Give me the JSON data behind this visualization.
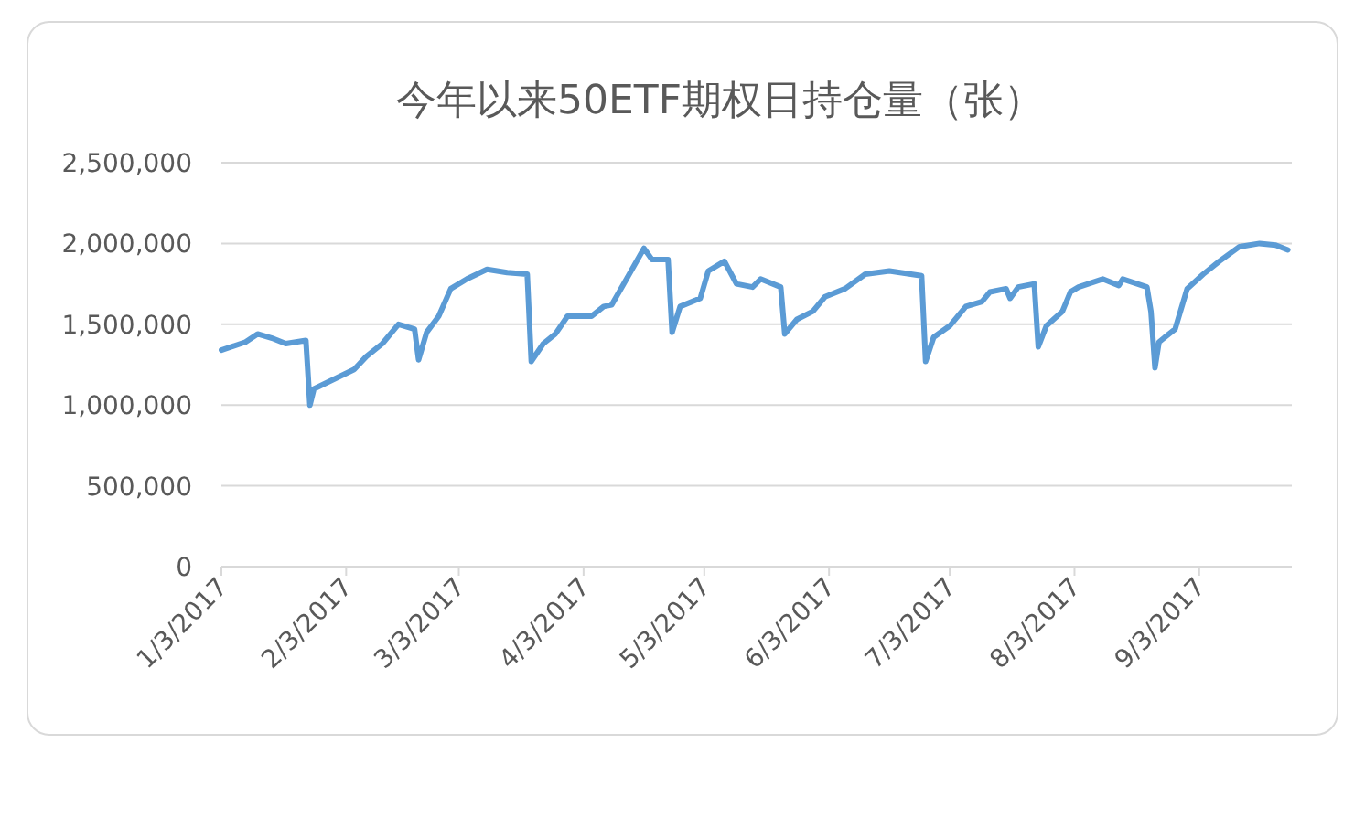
{
  "chart_data": {
    "type": "line",
    "title": "今年以来50ETF期权日持仓量（张）",
    "x": [
      "2017-01-03",
      "2017-01-09",
      "2017-01-12",
      "2017-01-16",
      "2017-01-19",
      "2017-01-24",
      "2017-01-25",
      "2017-01-26",
      "2017-02-05",
      "2017-02-08",
      "2017-02-12",
      "2017-02-16",
      "2017-02-20",
      "2017-02-21",
      "2017-02-23",
      "2017-02-26",
      "2017-03-01",
      "2017-03-05",
      "2017-03-10",
      "2017-03-15",
      "2017-03-20",
      "2017-03-21",
      "2017-03-24",
      "2017-03-27",
      "2017-03-30",
      "2017-04-05",
      "2017-04-08",
      "2017-04-10",
      "2017-04-13",
      "2017-04-18",
      "2017-04-20",
      "2017-04-24",
      "2017-04-25",
      "2017-04-27",
      "2017-05-02",
      "2017-05-04",
      "2017-05-08",
      "2017-05-11",
      "2017-05-15",
      "2017-05-17",
      "2017-05-22",
      "2017-05-23",
      "2017-05-26",
      "2017-05-30",
      "2017-06-02",
      "2017-06-07",
      "2017-06-12",
      "2017-06-18",
      "2017-06-26",
      "2017-06-27",
      "2017-06-29",
      "2017-07-03",
      "2017-07-07",
      "2017-07-11",
      "2017-07-13",
      "2017-07-17",
      "2017-07-18",
      "2017-07-20",
      "2017-07-24",
      "2017-07-25",
      "2017-07-27",
      "2017-07-31",
      "2017-08-02",
      "2017-08-04",
      "2017-08-10",
      "2017-08-14",
      "2017-08-15",
      "2017-08-21",
      "2017-08-22",
      "2017-08-23",
      "2017-08-24",
      "2017-08-28",
      "2017-08-31",
      "2017-09-04",
      "2017-09-08",
      "2017-09-13",
      "2017-09-18",
      "2017-09-22",
      "2017-09-25"
    ],
    "series": [
      {
        "color": "#5b9bd5",
        "values": [
          1340000,
          1390000,
          1440000,
          1410000,
          1380000,
          1400000,
          1000000,
          1100000,
          1220000,
          1300000,
          1380000,
          1500000,
          1470000,
          1280000,
          1450000,
          1550000,
          1720000,
          1780000,
          1840000,
          1820000,
          1810000,
          1270000,
          1380000,
          1440000,
          1550000,
          1550000,
          1610000,
          1620000,
          1750000,
          1970000,
          1900000,
          1900000,
          1450000,
          1610000,
          1660000,
          1830000,
          1890000,
          1750000,
          1730000,
          1780000,
          1730000,
          1440000,
          1530000,
          1580000,
          1670000,
          1720000,
          1810000,
          1830000,
          1800000,
          1270000,
          1420000,
          1490000,
          1610000,
          1640000,
          1700000,
          1720000,
          1660000,
          1730000,
          1750000,
          1360000,
          1490000,
          1580000,
          1700000,
          1730000,
          1780000,
          1740000,
          1780000,
          1730000,
          1580000,
          1230000,
          1390000,
          1470000,
          1720000,
          1810000,
          1890000,
          1980000,
          2000000,
          1990000,
          1960000
        ]
      }
    ],
    "xlim": [
      "2017-01-03",
      "2017-09-26"
    ],
    "xticks": [
      {
        "value": "2017-01-03",
        "label": "1/3/2017"
      },
      {
        "value": "2017-02-03",
        "label": "2/3/2017"
      },
      {
        "value": "2017-03-03",
        "label": "3/3/2017"
      },
      {
        "value": "2017-04-03",
        "label": "4/3/2017"
      },
      {
        "value": "2017-05-03",
        "label": "5/3/2017"
      },
      {
        "value": "2017-06-03",
        "label": "6/3/2017"
      },
      {
        "value": "2017-07-03",
        "label": "7/3/2017"
      },
      {
        "value": "2017-08-03",
        "label": "8/3/2017"
      },
      {
        "value": "2017-09-03",
        "label": "9/3/2017"
      }
    ],
    "ylim": [
      0,
      2500000
    ],
    "yticks": [
      0,
      {
        "value": 500000,
        "label": "500,000"
      },
      {
        "value": 1000000,
        "label": "1,000,000"
      },
      {
        "value": 1500000,
        "label": "1,500,000"
      },
      {
        "value": 2000000,
        "label": "2,000,000"
      },
      {
        "value": 2500000,
        "label": "2,500,000"
      }
    ],
    "grid": "y",
    "marker": "none",
    "line_style": "solid"
  }
}
